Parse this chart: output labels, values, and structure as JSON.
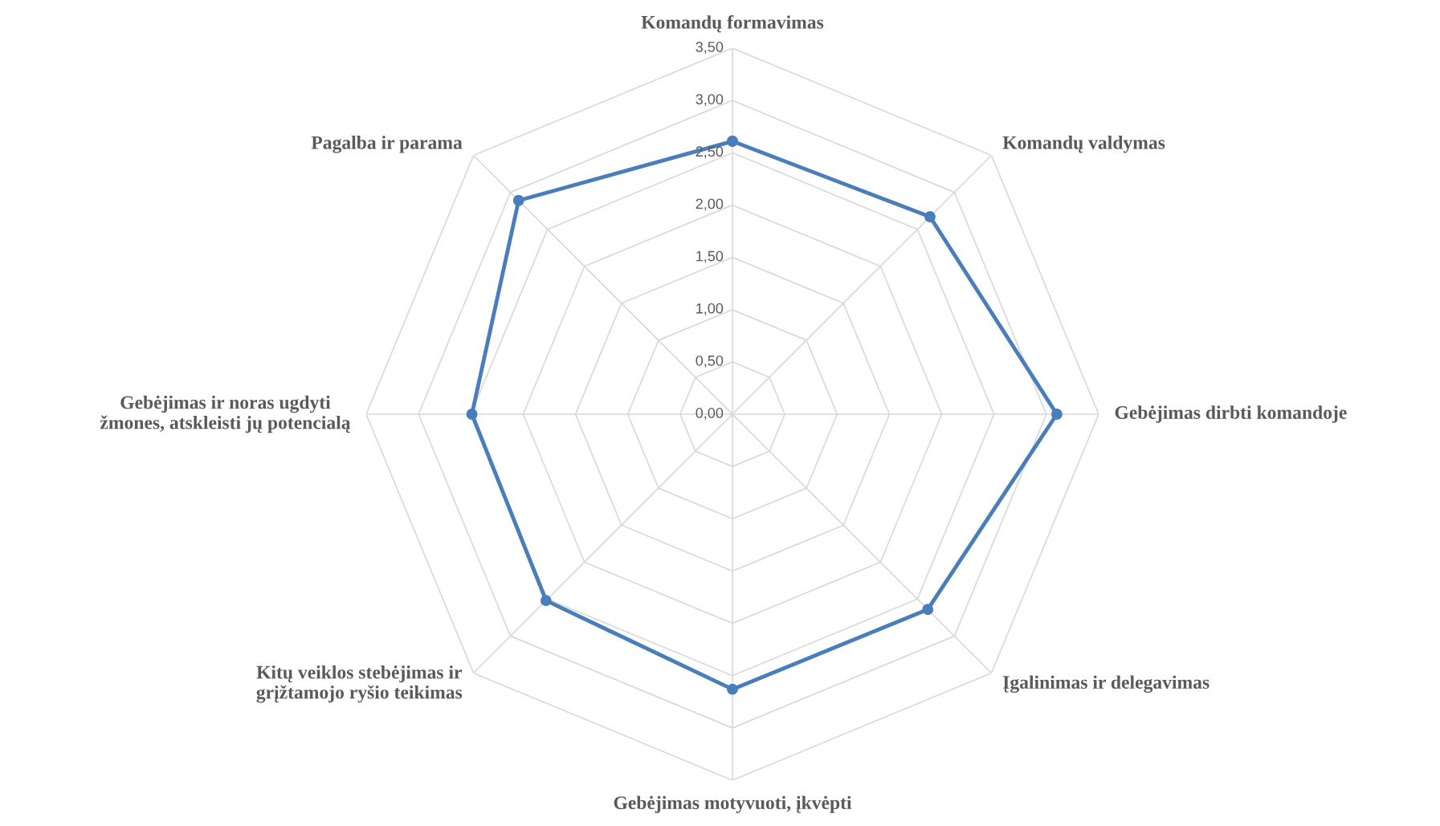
{
  "chart_data": {
    "type": "radar",
    "categories": [
      "Komandų formavimas",
      "Komandų valdymas",
      "Gebėjimas dirbti komandoje",
      "Įgalinimas ir delegavimas",
      "Gebėjimas motyvuoti, įkvėpti",
      "Kitų veiklos stebėjimas ir\ngrįžtamojo ryšio teikimas",
      "Gebėjimas ir noras ugdyti\nžmones, atskleisti jų potencialą",
      "Pagalba ir parama"
    ],
    "series": [
      {
        "color": "#4a7ebb",
        "values": [
          2.61,
          2.67,
          3.1,
          2.64,
          2.63,
          2.52,
          2.49,
          2.89
        ]
      }
    ],
    "ylim": [
      0,
      3.5
    ],
    "yticks": [
      {
        "value": 0,
        "label": "0,00"
      },
      {
        "value": 0.5,
        "label": "0,50"
      },
      {
        "value": 1,
        "label": "1,00"
      },
      {
        "value": 1.5,
        "label": "1,50"
      },
      {
        "value": 2,
        "label": "2,00"
      },
      {
        "value": 2.5,
        "label": "2,50"
      },
      {
        "value": 3,
        "label": "3,00"
      },
      {
        "value": 3.5,
        "label": "3,50"
      }
    ],
    "grid": true,
    "marker": "circle",
    "line_style": "solid"
  }
}
